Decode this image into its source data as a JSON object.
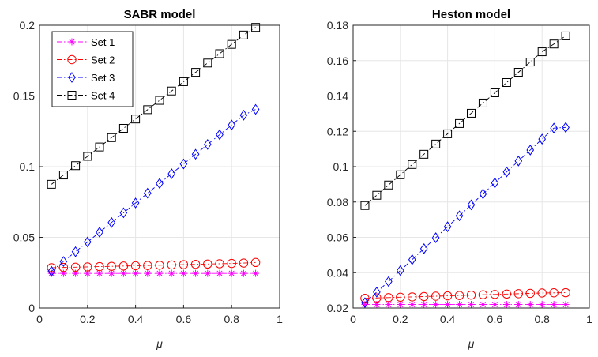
{
  "chart_data": [
    {
      "type": "line",
      "title": "SABR model",
      "xlabel": "μ",
      "ylabel": "",
      "xlim": [
        0,
        1
      ],
      "ylim": [
        0,
        0.2
      ],
      "xticks": [
        "0",
        "0.2",
        "0.4",
        "0.6",
        "0.8",
        "1"
      ],
      "yticks": [
        "0",
        "0.05",
        "0.1",
        "0.15",
        "0.2"
      ],
      "grid": true,
      "legend_position": "top-left",
      "x": [
        0.05,
        0.1,
        0.15,
        0.2,
        0.25,
        0.3,
        0.35,
        0.4,
        0.45,
        0.5,
        0.55,
        0.6,
        0.65,
        0.7,
        0.75,
        0.8,
        0.85,
        0.9
      ],
      "series": [
        {
          "name": "Set 1",
          "color": "#ff00ff",
          "marker": "asterisk",
          "dash": "dashdot",
          "values": [
            0.0245,
            0.0245,
            0.0245,
            0.0245,
            0.0245,
            0.0245,
            0.0245,
            0.0245,
            0.0245,
            0.0245,
            0.0245,
            0.0245,
            0.0245,
            0.0245,
            0.0245,
            0.0245,
            0.0245,
            0.0245
          ]
        },
        {
          "name": "Set 2",
          "color": "#ff0000",
          "marker": "circle",
          "dash": "dashdot",
          "values": [
            0.0285,
            0.0287,
            0.0289,
            0.0291,
            0.0293,
            0.0295,
            0.0297,
            0.0299,
            0.0301,
            0.0303,
            0.0305,
            0.0307,
            0.0309,
            0.0311,
            0.0313,
            0.0315,
            0.0318,
            0.0322
          ]
        },
        {
          "name": "Set 3",
          "color": "#0000ff",
          "marker": "diamond",
          "dash": "dashdot",
          "values": [
            0.026,
            0.0329,
            0.0398,
            0.0467,
            0.0536,
            0.0605,
            0.0674,
            0.0743,
            0.0812,
            0.0881,
            0.095,
            0.1019,
            0.1088,
            0.1157,
            0.1226,
            0.1295,
            0.1364,
            0.1405
          ]
        },
        {
          "name": "Set 4",
          "color": "#000000",
          "marker": "square",
          "dash": "dashdot",
          "values": [
            0.0875,
            0.0941,
            0.1007,
            0.1073,
            0.1139,
            0.1205,
            0.1271,
            0.1337,
            0.1403,
            0.1469,
            0.1535,
            0.1601,
            0.1667,
            0.1733,
            0.1799,
            0.1865,
            0.1931,
            0.1985
          ]
        }
      ]
    },
    {
      "type": "line",
      "title": "Heston model",
      "xlabel": "μ",
      "ylabel": "",
      "xlim": [
        0,
        1
      ],
      "ylim": [
        0.02,
        0.18
      ],
      "xticks": [
        "0",
        "0.2",
        "0.4",
        "0.6",
        "0.8",
        "1"
      ],
      "yticks": [
        "0.02",
        "0.04",
        "0.06",
        "0.08",
        "0.1",
        "0.12",
        "0.14",
        "0.16",
        "0.18"
      ],
      "grid": true,
      "x": [
        0.05,
        0.1,
        0.15,
        0.2,
        0.25,
        0.3,
        0.35,
        0.4,
        0.45,
        0.5,
        0.55,
        0.6,
        0.65,
        0.7,
        0.75,
        0.8,
        0.85,
        0.9
      ],
      "series": [
        {
          "name": "Set 1",
          "color": "#ff00ff",
          "marker": "asterisk",
          "dash": "dashdot",
          "values": [
            0.022,
            0.022,
            0.022,
            0.022,
            0.022,
            0.022,
            0.022,
            0.022,
            0.022,
            0.022,
            0.022,
            0.022,
            0.022,
            0.022,
            0.022,
            0.022,
            0.022,
            0.022
          ]
        },
        {
          "name": "Set 2",
          "color": "#ff0000",
          "marker": "circle",
          "dash": "dashdot",
          "values": [
            0.0255,
            0.0257,
            0.0259,
            0.0261,
            0.0263,
            0.0265,
            0.0267,
            0.0269,
            0.0271,
            0.0273,
            0.0275,
            0.0277,
            0.0279,
            0.0281,
            0.0283,
            0.0285,
            0.0286,
            0.0287
          ]
        },
        {
          "name": "Set 3",
          "color": "#0000ff",
          "marker": "diamond",
          "dash": "dashdot",
          "values": [
            0.023,
            0.029,
            0.035,
            0.0412,
            0.0474,
            0.0536,
            0.0598,
            0.066,
            0.0722,
            0.0784,
            0.0846,
            0.0908,
            0.097,
            0.1032,
            0.1094,
            0.1156,
            0.1218,
            0.1222
          ]
        },
        {
          "name": "Set 4",
          "color": "#000000",
          "marker": "square",
          "dash": "dashdot",
          "values": [
            0.078,
            0.0838,
            0.0896,
            0.0954,
            0.1012,
            0.107,
            0.1128,
            0.1186,
            0.1244,
            0.1302,
            0.136,
            0.1418,
            0.1476,
            0.1534,
            0.1592,
            0.165,
            0.1694,
            0.174
          ]
        }
      ]
    }
  ]
}
